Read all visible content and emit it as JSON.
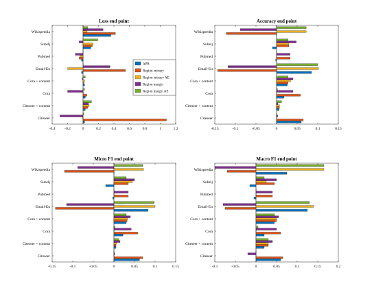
{
  "colors": [
    "#0072BD",
    "#D95319",
    "#EDB120",
    "#7E2F8E",
    "#77AC30"
  ],
  "legend": {
    "entries": [
      "APR",
      "Region entropy",
      "Region entropy AE",
      "Region margin",
      "Region margin AE"
    ],
    "placement": "top-right of first subplot"
  },
  "chart_data": [
    {
      "type": "bar",
      "orientation": "horizontal",
      "title": "Loss end point",
      "categories": [
        "Citeseer",
        "Citeseer + content",
        "Cora",
        "Cora + content",
        "Email-Eu",
        "Pubmed",
        "Subelj",
        "Wikispeedia"
      ],
      "xlim": [
        -0.4,
        1.2
      ],
      "xticks": [
        "-0.4",
        "-0.2",
        "0",
        "0.2",
        "0.4",
        "0.6",
        "0.8",
        "1",
        "1.2"
      ],
      "series": [
        {
          "name": "APR",
          "values": [
            0.02,
            0.03,
            0.03,
            0.02,
            -0.02,
            -0.02,
            0.1,
            0.36
          ]
        },
        {
          "name": "Region entropy",
          "values": [
            1.08,
            0.06,
            0.05,
            0.01,
            0.55,
            -0.05,
            0.12,
            0.42
          ]
        },
        {
          "name": "Region entropy AE",
          "values": [
            -0.01,
            0.08,
            0.01,
            0.02,
            -0.2,
            -0.04,
            0.13,
            0.05
          ]
        },
        {
          "name": "Region margin",
          "values": [
            -0.3,
            0.07,
            -0.2,
            -0.01,
            0.35,
            -0.1,
            -0.05,
            0.26
          ]
        },
        {
          "name": "Region margin AE",
          "values": [
            0.01,
            0.11,
            0.02,
            0.03,
            0.0,
            0.0,
            0.19,
            0.06
          ]
        }
      ]
    },
    {
      "type": "bar",
      "orientation": "horizontal",
      "title": "Accuracy end point",
      "categories": [
        "Citeseer",
        "Citeseer + content",
        "Cora",
        "Cora + content",
        "Email-Eu",
        "Pubmed",
        "Subelj",
        "Wikispeedia"
      ],
      "xlim": [
        -0.15,
        0.15
      ],
      "xticks": [
        "-0.15",
        "-0.1",
        "-0.05",
        "0",
        "0.05",
        "0.1",
        "0.15"
      ],
      "series": [
        {
          "name": "APR",
          "values": [
            0.06,
            0.006,
            0.018,
            0.026,
            0.085,
            -0.002,
            -0.01,
            0.0
          ]
        },
        {
          "name": "Region entropy",
          "values": [
            0.065,
            0.007,
            0.058,
            0.028,
            -0.143,
            0.033,
            0.03,
            -0.122
          ]
        },
        {
          "name": "Region entropy AE",
          "values": [
            0.0,
            0.007,
            0.0,
            0.034,
            0.102,
            0.0,
            0.03,
            0.072
          ]
        },
        {
          "name": "Region margin",
          "values": [
            0.003,
            0.003,
            0.04,
            0.04,
            -0.118,
            0.033,
            0.048,
            -0.088
          ]
        },
        {
          "name": "Region margin AE",
          "values": [
            0.0,
            0.012,
            0.002,
            0.028,
            0.1,
            0.0,
            0.028,
            0.072
          ]
        }
      ]
    },
    {
      "type": "bar",
      "orientation": "horizontal",
      "title": "Micro F1 end point",
      "categories": [
        "Citeseer",
        "Citeseer + content",
        "Cora",
        "Cora + content",
        "Email-Eu",
        "Pubmed",
        "Subelj",
        "Wikispeedia"
      ],
      "xlim": [
        -0.15,
        0.15
      ],
      "xticks": [
        "-0.15",
        "-0.1",
        "-0.05",
        "0",
        "0.05",
        "0.1",
        "0.15"
      ],
      "series": [
        {
          "name": "APR",
          "values": [
            0.062,
            0.005,
            0.022,
            0.03,
            0.083,
            -0.003,
            -0.02,
            0.0
          ]
        },
        {
          "name": "Region entropy",
          "values": [
            0.07,
            0.005,
            0.058,
            0.032,
            -0.142,
            0.035,
            0.035,
            -0.12
          ]
        },
        {
          "name": "Region entropy AE",
          "values": [
            0.0,
            0.006,
            0.0,
            0.033,
            0.1,
            0.0,
            0.045,
            0.072
          ]
        },
        {
          "name": "Region margin",
          "values": [
            0.002,
            0.015,
            0.042,
            0.04,
            -0.115,
            0.035,
            0.05,
            -0.088
          ]
        },
        {
          "name": "Region margin AE",
          "values": [
            0.0,
            0.012,
            0.003,
            0.03,
            0.098,
            0.0,
            0.03,
            0.07
          ]
        }
      ]
    },
    {
      "type": "bar",
      "orientation": "horizontal",
      "title": "Macro F1 end point",
      "categories": [
        "Citeseer",
        "Citeseer + content",
        "Cora",
        "Cora + content",
        "Email-Eu",
        "Pubmed",
        "Subelj",
        "Wikispeedia"
      ],
      "xlim": [
        -0.1,
        0.2
      ],
      "xticks": [
        "-0.1",
        "-0.05",
        "0",
        "0.05",
        "0.1",
        "0.15",
        "0.2"
      ],
      "series": [
        {
          "name": "APR",
          "values": [
            0.06,
            0.02,
            0.02,
            0.045,
            0.125,
            -0.005,
            -0.015,
            0.075
          ]
        },
        {
          "name": "Region entropy",
          "values": [
            0.065,
            0.03,
            0.06,
            0.05,
            -0.075,
            0.04,
            0.045,
            -0.07
          ]
        },
        {
          "name": "Region entropy AE",
          "values": [
            0.0,
            0.03,
            0.0,
            0.05,
            0.14,
            0.0,
            0.025,
            0.165
          ]
        },
        {
          "name": "Region margin",
          "values": [
            -0.02,
            0.04,
            0.05,
            0.055,
            -0.08,
            0.04,
            0.05,
            -0.1
          ]
        },
        {
          "name": "Region margin AE",
          "values": [
            0.0,
            0.03,
            0.005,
            0.045,
            0.13,
            0.0,
            0.02,
            0.165
          ]
        }
      ]
    }
  ]
}
